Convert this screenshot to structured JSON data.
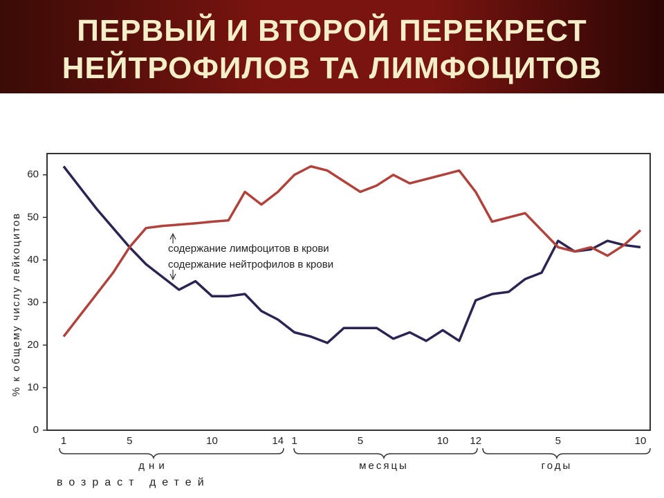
{
  "chart_data": {
    "type": "line",
    "title": [
      "ПЕРВЫЙ И ВТОРОЙ ПЕРЕКРЕСТ",
      "НЕЙТРОФИЛОВ ТА ЛИМФОЦИТОВ"
    ],
    "y_label": "% к общему числу лейкоцитов",
    "x_label": "возраст детей",
    "x_groups": [
      "дни",
      "месяцы",
      "годы"
    ],
    "annotations": [
      "содержание лимфоцитов в крови",
      "содержание нейтрофилов в крови"
    ],
    "categories": [
      "1",
      null,
      null,
      null,
      "5",
      null,
      null,
      null,
      null,
      "10",
      null,
      null,
      null,
      "14",
      "1",
      null,
      null,
      null,
      "5",
      null,
      null,
      null,
      null,
      "10",
      null,
      "12",
      null,
      null,
      null,
      null,
      "5",
      null,
      null,
      null,
      null,
      "10"
    ],
    "series": [
      {
        "name": "нейтрофилы",
        "color": "#2b2452",
        "values": [
          62,
          57,
          52,
          47.5,
          43,
          39,
          36,
          33,
          35,
          31.5,
          31.5,
          32,
          28,
          26,
          23,
          22,
          20.5,
          24,
          24,
          24,
          21.5,
          23,
          21,
          23.5,
          21,
          30.5,
          32,
          32.5,
          35.5,
          37,
          44.5,
          42,
          42.5,
          44.5,
          43.5,
          43
        ]
      },
      {
        "name": "лимфоциты",
        "color": "#b0423b",
        "values": [
          22,
          27,
          32,
          37,
          43,
          47.5,
          48,
          48.3,
          48.6,
          49,
          49.3,
          56,
          53,
          56,
          60,
          62,
          61,
          58.5,
          56,
          57.5,
          60,
          58,
          59,
          60,
          61,
          56,
          49,
          50,
          51,
          47,
          43,
          42,
          43,
          41,
          43.5,
          47
        ]
      }
    ],
    "ylim": [
      0,
      65
    ],
    "yticks": [
      0,
      10,
      20,
      30,
      40,
      50,
      60
    ]
  }
}
